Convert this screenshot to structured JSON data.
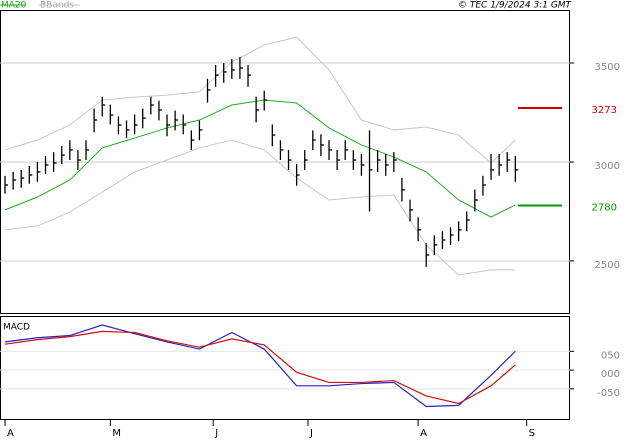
{
  "chart_data": [
    {
      "type": "ohlc",
      "source": "© TEC 1/9/2024 3:1 GMT",
      "xlim": [
        -0.62,
        69.75
      ],
      "xticks": [
        {
          "value": 0,
          "label": "A"
        },
        {
          "value": 13,
          "label": "M"
        },
        {
          "value": 25.7,
          "label": "J"
        },
        {
          "value": 37.4,
          "label": "J"
        },
        {
          "value": 51,
          "label": "A"
        },
        {
          "value": 64.4,
          "label": "S"
        }
      ],
      "ylim": [
        2237,
        3768
      ],
      "yticks": [
        2500,
        3000,
        3500
      ],
      "grid": true,
      "close": [
        2884,
        2909,
        2919,
        2934,
        2950,
        2985,
        2995,
        3035,
        3061,
        3010,
        3061,
        3212,
        3288,
        3237,
        3187,
        3162,
        3187,
        3222,
        3288,
        3263,
        3187,
        3212,
        3187,
        3111,
        3162,
        3364,
        3439,
        3455,
        3465,
        3475,
        3439,
        3263,
        3313,
        3136,
        3061,
        3010,
        2934,
        3010,
        3111,
        3086,
        3061,
        3010,
        3061,
        3010,
        2985,
        2960,
        3010,
        2985,
        3010,
        2859,
        2758,
        2657,
        2530,
        2581,
        2606,
        2631,
        2657,
        2707,
        2808,
        2884,
        2960,
        2985,
        3010,
        2960
      ],
      "high": [
        2930,
        2950,
        2960,
        2980,
        3000,
        3030,
        3050,
        3080,
        3110,
        3060,
        3110,
        3270,
        3330,
        3290,
        3230,
        3210,
        3240,
        3270,
        3330,
        3310,
        3240,
        3260,
        3240,
        3160,
        3210,
        3420,
        3490,
        3500,
        3520,
        3530,
        3490,
        3330,
        3360,
        3190,
        3110,
        3060,
        2990,
        3060,
        3160,
        3140,
        3110,
        3060,
        3110,
        3060,
        3040,
        3160,
        3060,
        3040,
        3050,
        2920,
        2810,
        2720,
        2590,
        2630,
        2650,
        2670,
        2700,
        2750,
        2860,
        2930,
        3040,
        3040,
        3050,
        3030
      ],
      "low": [
        2840,
        2860,
        2870,
        2890,
        2900,
        2940,
        2950,
        2990,
        3010,
        2960,
        3010,
        3150,
        3230,
        3190,
        3140,
        3120,
        3140,
        3170,
        3240,
        3210,
        3130,
        3160,
        3140,
        3060,
        3110,
        3300,
        3380,
        3400,
        3420,
        3420,
        3380,
        3200,
        3260,
        3080,
        3010,
        2960,
        2880,
        2960,
        3060,
        3030,
        3010,
        2960,
        3010,
        2960,
        2930,
        2750,
        2950,
        2930,
        2950,
        2800,
        2700,
        2600,
        2470,
        2530,
        2560,
        2580,
        2600,
        2650,
        2750,
        2830,
        2910,
        2930,
        2950,
        2900
      ],
      "color": "#000000",
      "series": [
        {
          "name": "MA20",
          "color": "#22aa22",
          "x": [
            0,
            4,
            8,
            12,
            16,
            20,
            24,
            28,
            32,
            36,
            40,
            44,
            48,
            52,
            56,
            60,
            63
          ],
          "values": [
            2758,
            2823,
            2909,
            3071,
            3121,
            3172,
            3212,
            3288,
            3313,
            3298,
            3172,
            3086,
            3025,
            2950,
            2808,
            2722,
            2783
          ]
        },
        {
          "name": "BBands",
          "color": "#c8c8c8",
          "x": [
            0,
            4,
            8,
            12,
            16,
            20,
            24,
            28,
            32,
            36,
            40,
            44,
            48,
            52,
            56,
            60,
            63
          ],
          "upper": [
            3061,
            3111,
            3187,
            3313,
            3328,
            3338,
            3354,
            3505,
            3591,
            3631,
            3465,
            3212,
            3162,
            3177,
            3136,
            2995,
            3111
          ],
          "lower": [
            2657,
            2677,
            2747,
            2848,
            2950,
            3010,
            3071,
            3111,
            3061,
            2919,
            2808,
            2823,
            2833,
            2581,
            2429,
            2455,
            2455
          ]
        }
      ],
      "levels": [
        {
          "value": 3273,
          "color": "#cc0000"
        },
        {
          "value": 2780,
          "color": "#009900"
        }
      ]
    },
    {
      "type": "line",
      "title": "MACD",
      "ylim": [
        -133,
        144
      ],
      "yticks": [
        {
          "value": 50,
          "label": "050"
        },
        {
          "value": 0,
          "label": "000"
        },
        {
          "value": -50,
          "label": "-050"
        }
      ],
      "series": [
        {
          "color": "#2222cc",
          "x": [
            0,
            4,
            8,
            12,
            16,
            20,
            24,
            28,
            32,
            36,
            40,
            44,
            48,
            52,
            56,
            60,
            63
          ],
          "values": [
            75,
            86,
            92,
            120,
            97,
            75,
            56,
            100,
            56,
            -42,
            -42,
            -36,
            -33,
            -97,
            -94,
            -14,
            50
          ]
        },
        {
          "color": "#cc1111",
          "x": [
            0,
            4,
            8,
            12,
            16,
            20,
            24,
            28,
            32,
            36,
            40,
            44,
            48,
            52,
            56,
            60,
            63
          ],
          "values": [
            69,
            81,
            89,
            103,
            100,
            78,
            61,
            83,
            67,
            -6,
            -33,
            -33,
            -28,
            -69,
            -89,
            -42,
            14
          ]
        }
      ]
    }
  ]
}
